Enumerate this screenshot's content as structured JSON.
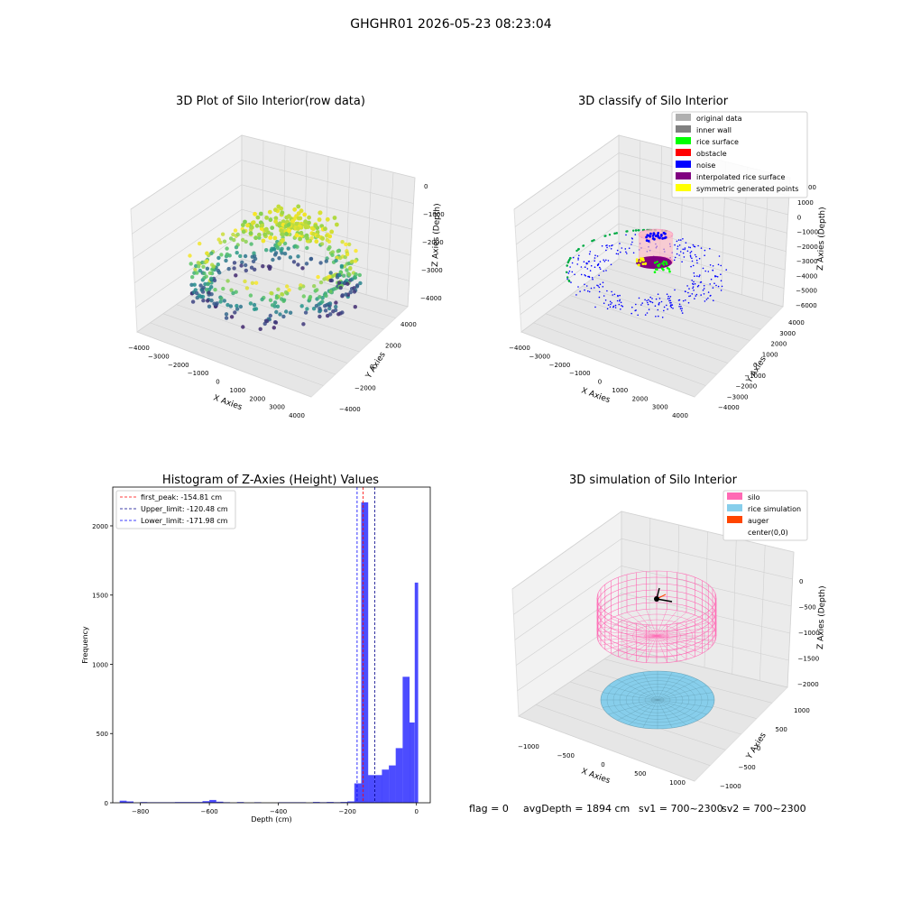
{
  "figure": {
    "suptitle": "GHGHR01 2026-05-23 08:23:04"
  },
  "chart_data": [
    {
      "type": "scatter",
      "projection": "3d",
      "title": "3D Plot of Silo Interior(row data)",
      "xlabel": "X Axies",
      "ylabel": "Y Axies",
      "zlabel": "Z Axies (Depth)",
      "xticks": [
        "−4000",
        "−3000",
        "−2000",
        "−1000",
        "0",
        "1000",
        "2000",
        "3000",
        "4000"
      ],
      "yticks": [
        "−4000",
        "−2000",
        "0",
        "2000",
        "4000"
      ],
      "zticks": [
        "0",
        "−1000",
        "−2000",
        "−3000",
        "−4000"
      ],
      "xlim": [
        -4000,
        4000
      ],
      "ylim": [
        -4000,
        4000
      ],
      "zlim": [
        -4500,
        0
      ],
      "colormap": "viridis",
      "description_points": "ring of points around silo wall, denser yellow cluster near top"
    },
    {
      "type": "scatter",
      "projection": "3d",
      "title": "3D classify of Silo Interior",
      "xlabel": "X Axies",
      "ylabel": "Y Axies",
      "zlabel": "Z Axies (Depth)",
      "xticks": [
        "−4000",
        "−3000",
        "−2000",
        "−1000",
        "0",
        "1000",
        "2000",
        "3000",
        "4000"
      ],
      "yticks": [
        "−4000",
        "−3000",
        "−2000",
        "−1000",
        "0",
        "1000",
        "2000",
        "3000",
        "4000"
      ],
      "zticks": [
        "1000",
        "0",
        "−1000",
        "−2000",
        "−3000",
        "−4000",
        "−5000",
        "−6000"
      ],
      "ztick_partial": "00",
      "legend_position": "top-right",
      "legend": [
        {
          "label": "original data",
          "color": "#b0b0b0"
        },
        {
          "label": "inner wall",
          "color": "#808080"
        },
        {
          "label": "rice surface",
          "color": "#00ff00"
        },
        {
          "label": "obstacle",
          "color": "#ff0000"
        },
        {
          "label": "noise",
          "color": "#0000ff"
        },
        {
          "label": "interpolated rice surface",
          "color": "#800080"
        },
        {
          "label": "symmetric generated points",
          "color": "#ffff00"
        }
      ]
    },
    {
      "type": "bar",
      "title": "Histogram of Z-Axies (Height) Values",
      "xlabel": "Depth (cm)",
      "ylabel": "Frequency",
      "xlim": [
        -880,
        40
      ],
      "ylim": [
        0,
        2280
      ],
      "xticks": [
        -800,
        -600,
        -400,
        -200,
        0
      ],
      "xtick_labels": [
        "−800",
        "−600",
        "−400",
        "−200",
        "0"
      ],
      "yticks": [
        0,
        500,
        1000,
        1500,
        2000
      ],
      "yticklabels": [
        "0",
        "500",
        "1000",
        "1500",
        "2000"
      ],
      "bar_color": "#0000ff",
      "bar_opacity": 0.7,
      "bins": [
        [
          -860,
          -840,
          15
        ],
        [
          -840,
          -820,
          10
        ],
        [
          -800,
          -780,
          5
        ],
        [
          -780,
          -700,
          4
        ],
        [
          -700,
          -620,
          5
        ],
        [
          -620,
          -600,
          12
        ],
        [
          -600,
          -580,
          20
        ],
        [
          -580,
          -560,
          8
        ],
        [
          -560,
          -540,
          4
        ],
        [
          -520,
          -500,
          5
        ],
        [
          -470,
          -450,
          4
        ],
        [
          -400,
          -320,
          4
        ],
        [
          -300,
          -280,
          6
        ],
        [
          -280,
          -260,
          4
        ],
        [
          -260,
          -240,
          6
        ],
        [
          -240,
          -220,
          4
        ],
        [
          -220,
          -200,
          6
        ],
        [
          -200,
          -180,
          10
        ],
        [
          -180,
          -160,
          140
        ],
        [
          -160,
          -140,
          2170
        ],
        [
          -140,
          -120,
          200
        ],
        [
          -120,
          -100,
          200
        ],
        [
          -100,
          -80,
          240
        ],
        [
          -80,
          -60,
          270
        ],
        [
          -60,
          -40,
          395
        ],
        [
          -40,
          -20,
          910
        ],
        [
          -20,
          -5,
          580
        ],
        [
          -5,
          5,
          1590
        ]
      ],
      "lines": [
        {
          "x": -154.81,
          "label": "first_peak: -154.81 cm",
          "color": "#ff0000"
        },
        {
          "x": -120.48,
          "label": "Upper_limit: -120.48 cm",
          "color": "#00008b"
        },
        {
          "x": -171.98,
          "label": "Lower_limit: -171.98 cm",
          "color": "#0000ff"
        }
      ],
      "legend_position": "top-left"
    },
    {
      "type": "scatter",
      "projection": "3d",
      "title": "3D simulation of Silo Interior",
      "xlabel": "X Axies",
      "ylabel": "Y Axies",
      "zlabel": "Z Axies (Depth)",
      "xticks": [
        "−1000",
        "−500",
        "0",
        "500",
        "1000"
      ],
      "yticks": [
        "−1000",
        "−500",
        "0",
        "500",
        "1000"
      ],
      "zticks": [
        "0",
        "−500",
        "−1000",
        "−1500",
        "−2000"
      ],
      "legend_position": "top-right",
      "legend": [
        {
          "label": "silo",
          "color": "#ff69b4"
        },
        {
          "label": "rice simulation",
          "color": "#87ceeb"
        },
        {
          "label": "auger",
          "color": "#ff4500"
        },
        {
          "label": "center(0,0)",
          "color": ""
        }
      ]
    }
  ],
  "footer": {
    "flag": "flag = 0",
    "avgdepth": "avgDepth = 1894 cm",
    "sv1": "sv1 = 700~2300",
    "sv2": "sv2 = 700~2300"
  }
}
